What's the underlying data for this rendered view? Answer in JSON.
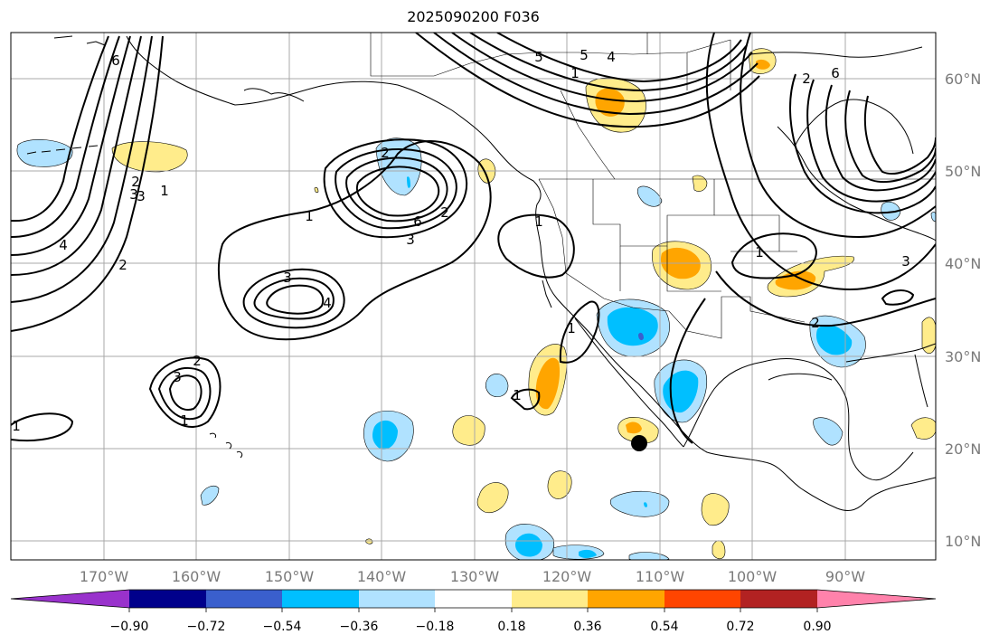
{
  "title": "2025090200 F036",
  "map": {
    "longitude_labels": [
      "170°W",
      "160°W",
      "150°W",
      "140°W",
      "130°W",
      "120°W",
      "110°W",
      "100°W",
      "90°W"
    ],
    "latitude_labels": [
      "60°N",
      "50°N",
      "40°N",
      "30°N",
      "20°N",
      "10°N"
    ],
    "contour_labels": [
      "6",
      "5",
      "4",
      "3",
      "2",
      "1",
      "1",
      "2",
      "3",
      "2",
      "1",
      "2",
      "4",
      "6",
      "5",
      "3",
      "3",
      "4",
      "3",
      "2",
      "1",
      "1",
      "1",
      "1",
      "1",
      "2",
      "3",
      "6",
      "1",
      "2",
      "3",
      "4",
      "5",
      "6",
      "4",
      "3",
      "2",
      "1",
      "1",
      "2",
      "3",
      "1"
    ],
    "marker": "storm-position-dot"
  },
  "colorbar": {
    "tick_labels": [
      "−0.90",
      "−0.72",
      "−0.54",
      "−0.36",
      "−0.18",
      "0.18",
      "0.36",
      "0.54",
      "0.72",
      "0.90"
    ],
    "colors": [
      "#9932cc",
      "#00008b",
      "#3a5fcd",
      "#00bfff",
      "#b0e2ff",
      "#ffffff",
      "#ffec8b",
      "#ffa500",
      "#ff4500",
      "#b22222",
      "#ff82ab"
    ]
  }
}
